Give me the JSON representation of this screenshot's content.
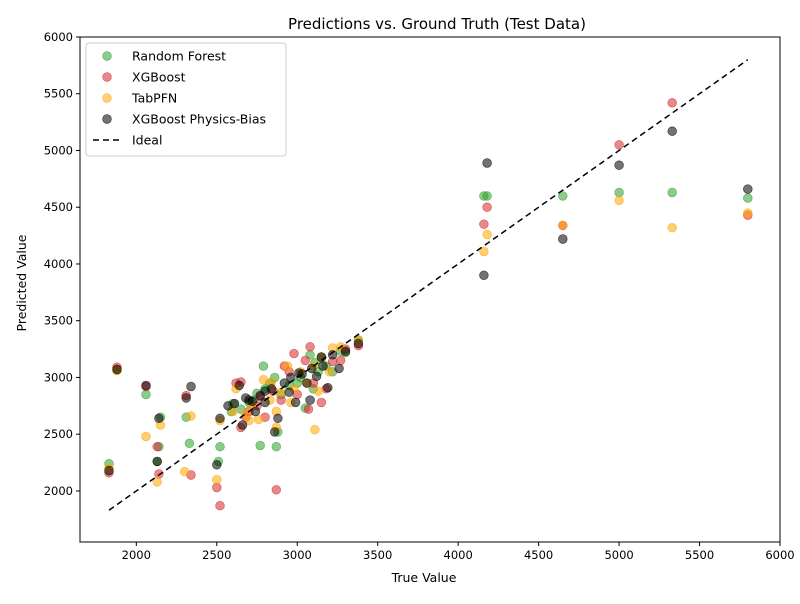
{
  "chart_data": {
    "type": "scatter",
    "title": "Predictions vs. Ground Truth (Test Data)",
    "xlabel": "True Value",
    "ylabel": "Predicted Value",
    "xlim": [
      1650,
      6000
    ],
    "ylim": [
      1550,
      6000
    ],
    "xticks": [
      2000,
      2500,
      3000,
      3500,
      4000,
      4500,
      5000,
      5500,
      6000
    ],
    "yticks": [
      2000,
      2500,
      3000,
      3500,
      4000,
      4500,
      5000,
      5500,
      6000
    ],
    "grid": false,
    "legend_position": "top-left",
    "series": [
      {
        "name": "Random Forest",
        "color": "#2ca02c",
        "points": [
          [
            1830,
            2240
          ],
          [
            1880,
            3070
          ],
          [
            2060,
            2850
          ],
          [
            2130,
            2260
          ],
          [
            2140,
            2390
          ],
          [
            2150,
            2650
          ],
          [
            2310,
            2650
          ],
          [
            2330,
            2420
          ],
          [
            2520,
            2390
          ],
          [
            2510,
            2260
          ],
          [
            2590,
            2700
          ],
          [
            2650,
            2720
          ],
          [
            2700,
            2780
          ],
          [
            2730,
            2800
          ],
          [
            2770,
            2400
          ],
          [
            2790,
            3100
          ],
          [
            2800,
            2900
          ],
          [
            2830,
            2950
          ],
          [
            2870,
            2390
          ],
          [
            2880,
            2520
          ],
          [
            2900,
            2850
          ],
          [
            2950,
            2930
          ],
          [
            3000,
            2950
          ],
          [
            3050,
            2730
          ],
          [
            3080,
            3200
          ],
          [
            3100,
            2900
          ],
          [
            3130,
            3050
          ],
          [
            3150,
            3170
          ],
          [
            3180,
            3100
          ],
          [
            3220,
            3050
          ],
          [
            3270,
            3230
          ],
          [
            3300,
            3220
          ],
          [
            3380,
            3330
          ],
          [
            4160,
            4600
          ],
          [
            4180,
            4600
          ],
          [
            4650,
            4600
          ],
          [
            5000,
            4630
          ],
          [
            5330,
            4630
          ],
          [
            5800,
            4580
          ],
          [
            2860,
            3000
          ],
          [
            2600,
            2770
          ],
          [
            2750,
            2860
          ],
          [
            3020,
            3000
          ],
          [
            3110,
            3130
          ]
        ]
      },
      {
        "name": "XGBoost",
        "color": "#d62728",
        "points": [
          [
            1830,
            2160
          ],
          [
            1880,
            3090
          ],
          [
            2060,
            2920
          ],
          [
            2130,
            2390
          ],
          [
            2140,
            2150
          ],
          [
            2310,
            2840
          ],
          [
            2340,
            2140
          ],
          [
            2500,
            2030
          ],
          [
            2520,
            1870
          ],
          [
            2870,
            2010
          ],
          [
            2620,
            2950
          ],
          [
            2650,
            2960
          ],
          [
            2680,
            2650
          ],
          [
            2700,
            2700
          ],
          [
            2750,
            2750
          ],
          [
            2800,
            2650
          ],
          [
            2850,
            2880
          ],
          [
            2900,
            2800
          ],
          [
            2950,
            3050
          ],
          [
            2980,
            3210
          ],
          [
            3000,
            2850
          ],
          [
            3050,
            3150
          ],
          [
            3080,
            3270
          ],
          [
            3100,
            2950
          ],
          [
            3150,
            2780
          ],
          [
            3180,
            2900
          ],
          [
            3220,
            3140
          ],
          [
            3270,
            3150
          ],
          [
            3300,
            3250
          ],
          [
            3380,
            3280
          ],
          [
            4160,
            4350
          ],
          [
            4180,
            4500
          ],
          [
            4650,
            4340
          ],
          [
            5000,
            5050
          ],
          [
            5330,
            5420
          ],
          [
            5800,
            4430
          ],
          [
            2770,
            2830
          ],
          [
            2920,
            3100
          ],
          [
            3070,
            2720
          ],
          [
            2650,
            2560
          ]
        ]
      },
      {
        "name": "TabPFN",
        "color": "#ffa500",
        "points": [
          [
            1830,
            2200
          ],
          [
            1880,
            3060
          ],
          [
            2060,
            2480
          ],
          [
            2130,
            2080
          ],
          [
            2150,
            2580
          ],
          [
            2300,
            2170
          ],
          [
            2340,
            2660
          ],
          [
            2500,
            2100
          ],
          [
            2520,
            2620
          ],
          [
            2870,
            2560
          ],
          [
            2600,
            2700
          ],
          [
            2620,
            2900
          ],
          [
            2680,
            2680
          ],
          [
            2720,
            2750
          ],
          [
            2760,
            2630
          ],
          [
            2790,
            2980
          ],
          [
            2830,
            2800
          ],
          [
            2870,
            2700
          ],
          [
            2900,
            2870
          ],
          [
            2940,
            3100
          ],
          [
            2980,
            2900
          ],
          [
            3020,
            3050
          ],
          [
            3060,
            2950
          ],
          [
            3100,
            3100
          ],
          [
            3110,
            2540
          ],
          [
            3150,
            3180
          ],
          [
            3200,
            3050
          ],
          [
            3220,
            3260
          ],
          [
            3270,
            3270
          ],
          [
            3380,
            3330
          ],
          [
            4160,
            4110
          ],
          [
            4180,
            4260
          ],
          [
            4650,
            4340
          ],
          [
            5000,
            4560
          ],
          [
            5330,
            4320
          ],
          [
            5800,
            4450
          ],
          [
            2700,
            2620
          ],
          [
            2960,
            2780
          ],
          [
            3130,
            2880
          ],
          [
            2840,
            2960
          ]
        ]
      },
      {
        "name": "XGBoost Physics-Bias",
        "color": "#000000",
        "points": [
          [
            1830,
            2180
          ],
          [
            1880,
            3070
          ],
          [
            2060,
            2930
          ],
          [
            2130,
            2260
          ],
          [
            2140,
            2640
          ],
          [
            2310,
            2820
          ],
          [
            2340,
            2920
          ],
          [
            2500,
            2230
          ],
          [
            2520,
            2640
          ],
          [
            2860,
            2520
          ],
          [
            2570,
            2750
          ],
          [
            2610,
            2770
          ],
          [
            2640,
            2930
          ],
          [
            2660,
            2580
          ],
          [
            2700,
            2800
          ],
          [
            2740,
            2700
          ],
          [
            2770,
            2840
          ],
          [
            2800,
            2780
          ],
          [
            2840,
            2900
          ],
          [
            2880,
            2640
          ],
          [
            2920,
            2950
          ],
          [
            2960,
            3000
          ],
          [
            2990,
            2780
          ],
          [
            3030,
            3030
          ],
          [
            3060,
            2950
          ],
          [
            3090,
            3080
          ],
          [
            3120,
            3010
          ],
          [
            3150,
            3180
          ],
          [
            3190,
            2910
          ],
          [
            3220,
            3200
          ],
          [
            3260,
            3080
          ],
          [
            3300,
            3230
          ],
          [
            3380,
            3300
          ],
          [
            4160,
            3900
          ],
          [
            4180,
            4890
          ],
          [
            4650,
            4220
          ],
          [
            5000,
            4870
          ],
          [
            5330,
            5170
          ],
          [
            5800,
            4660
          ],
          [
            2800,
            2880
          ],
          [
            2720,
            2790
          ],
          [
            2950,
            2870
          ],
          [
            3010,
            3040
          ],
          [
            3080,
            2800
          ],
          [
            3160,
            3100
          ],
          [
            2680,
            2820
          ]
        ]
      }
    ],
    "ideal_line": {
      "name": "Ideal",
      "color": "#000000",
      "style": "dashed",
      "x": [
        1830,
        5800
      ],
      "y": [
        1830,
        5800
      ]
    }
  }
}
